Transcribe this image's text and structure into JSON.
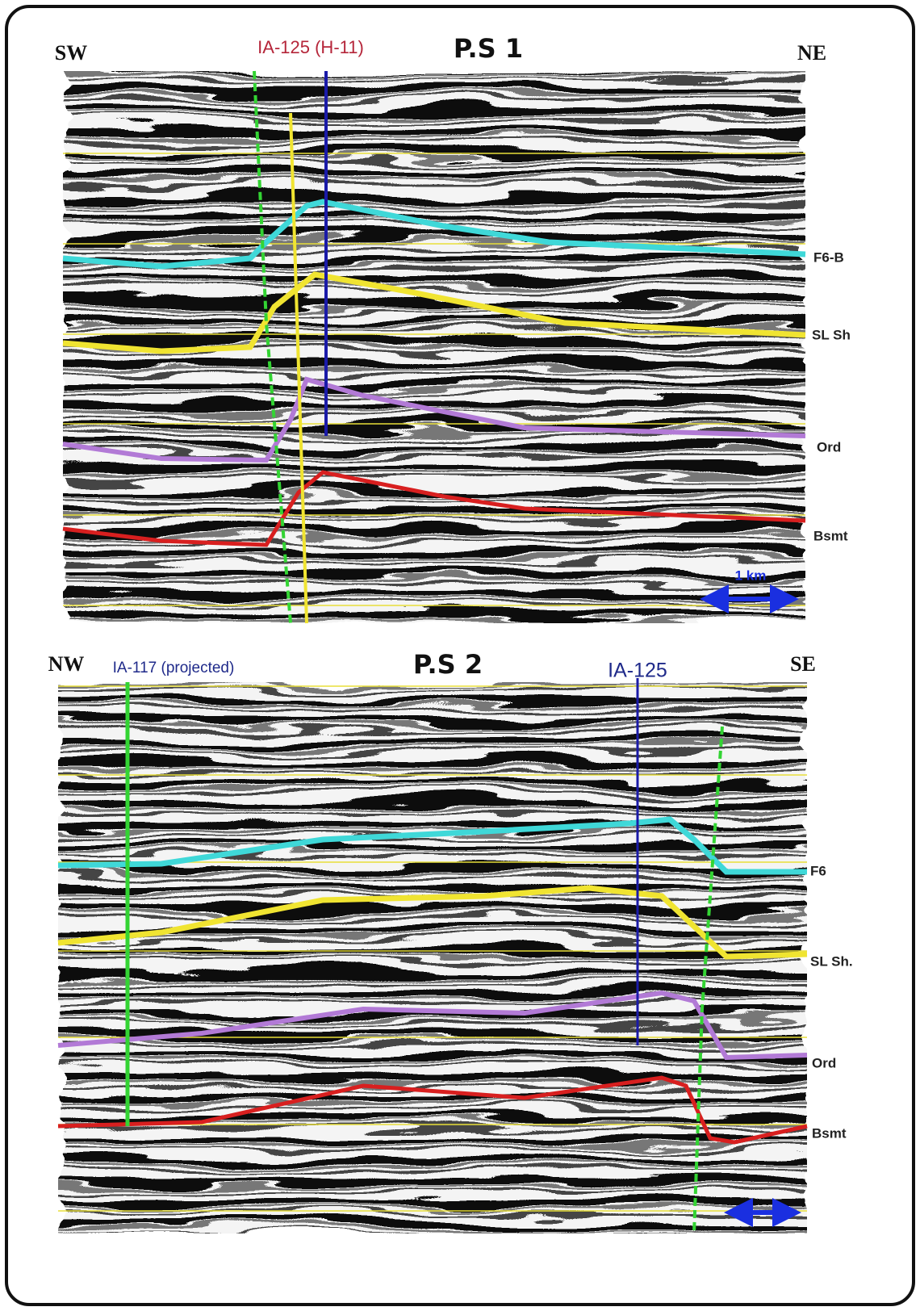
{
  "panels": [
    {
      "title": "P.S 1",
      "left": "SW",
      "right": "NE",
      "wells": [
        "IA-125 (H-11)"
      ],
      "horizons": [
        "F6-B",
        "SL Sh",
        "Ord",
        "Bsmt"
      ],
      "scale": "1 km"
    },
    {
      "title": "P.S 2",
      "left": "NW",
      "right": "SE",
      "wells": [
        "IA-117 (projected)",
        "IA-125"
      ],
      "horizons": [
        "F6",
        "SL Sh.",
        "Ord",
        "Bsmt"
      ]
    }
  ]
}
